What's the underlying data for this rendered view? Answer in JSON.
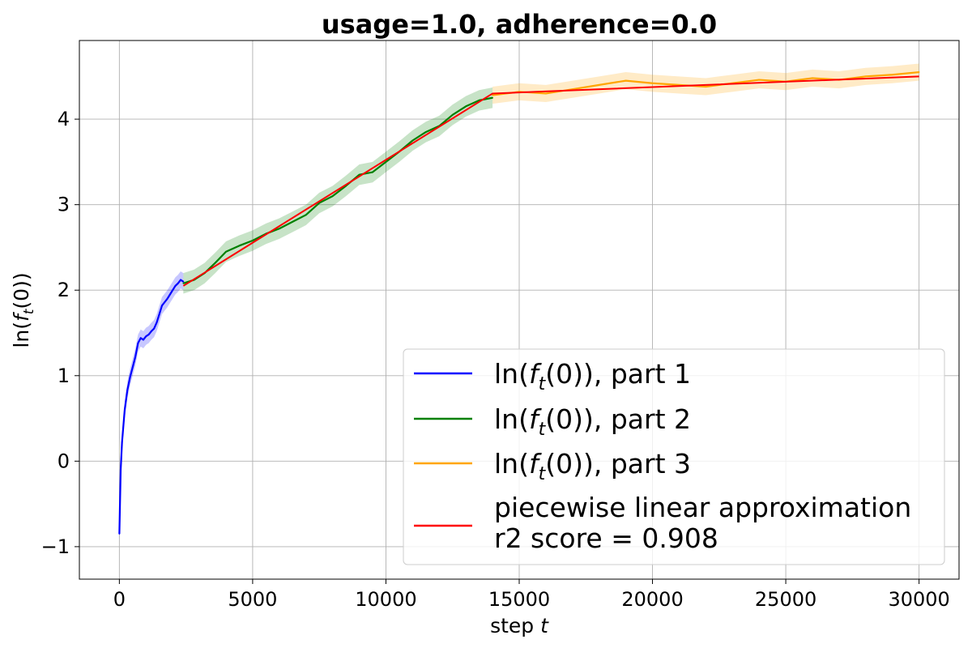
{
  "chart_data": {
    "type": "line",
    "title": "usage=1.0, adherence=0.0",
    "xlabel_main": "step ",
    "xlabel_var": "t",
    "ylabel": "ln(f_t(0))",
    "xlim": [
      -1500,
      31500
    ],
    "ylim": [
      -1.38,
      4.92
    ],
    "xticks": [
      0,
      5000,
      10000,
      15000,
      20000,
      25000,
      30000
    ],
    "xtick_labels": [
      "0",
      "5000",
      "10000",
      "15000",
      "20000",
      "25000",
      "30000"
    ],
    "yticks": [
      -1,
      0,
      1,
      2,
      3,
      4
    ],
    "ytick_labels": [
      "−1",
      "0",
      "1",
      "2",
      "3",
      "4"
    ],
    "grid": true,
    "legend_position": "lower-right",
    "series": [
      {
        "legend_main": "ln(",
        "legend_f": "f",
        "legend_sub": "t",
        "legend_tail": "(0)), part 1",
        "color": "#0000ff",
        "band_color": "#0000ff",
        "x": [
          0,
          50,
          100,
          200,
          300,
          400,
          500,
          600,
          700,
          800,
          900,
          1000,
          1100,
          1200,
          1300,
          1400,
          1500,
          1600,
          1700,
          1800,
          1900,
          2000,
          2100,
          2200,
          2300,
          2400
        ],
        "y": [
          -0.85,
          -0.1,
          0.22,
          0.6,
          0.83,
          0.98,
          1.1,
          1.22,
          1.38,
          1.44,
          1.42,
          1.46,
          1.48,
          1.52,
          1.55,
          1.62,
          1.72,
          1.82,
          1.86,
          1.9,
          1.95,
          2.0,
          2.05,
          2.08,
          2.12,
          2.1
        ]
      },
      {
        "legend_main": "ln(",
        "legend_f": "f",
        "legend_sub": "t",
        "legend_tail": "(0)), part 2",
        "color": "#008000",
        "band_color": "#008000",
        "x": [
          2400,
          2800,
          3200,
          3600,
          4000,
          4500,
          5000,
          5500,
          6000,
          6500,
          7000,
          7500,
          8000,
          8500,
          9000,
          9500,
          10000,
          10500,
          11000,
          11500,
          12000,
          12500,
          13000,
          13500,
          14000
        ],
        "y": [
          2.08,
          2.12,
          2.2,
          2.32,
          2.45,
          2.52,
          2.58,
          2.66,
          2.72,
          2.8,
          2.88,
          3.02,
          3.1,
          3.22,
          3.35,
          3.38,
          3.5,
          3.62,
          3.75,
          3.85,
          3.92,
          4.05,
          4.15,
          4.22,
          4.25
        ]
      },
      {
        "legend_main": "ln(",
        "legend_f": "f",
        "legend_sub": "t",
        "legend_tail": "(0)), part 3",
        "color": "#ffa500",
        "band_color": "#ffa500",
        "x": [
          14000,
          15000,
          16000,
          17000,
          18000,
          19000,
          20000,
          21000,
          22000,
          23000,
          24000,
          25000,
          26000,
          27000,
          28000,
          29000,
          30000
        ],
        "y": [
          4.28,
          4.32,
          4.3,
          4.35,
          4.4,
          4.45,
          4.42,
          4.4,
          4.38,
          4.42,
          4.46,
          4.44,
          4.48,
          4.46,
          4.5,
          4.52,
          4.55
        ]
      },
      {
        "legend_main": "piecewise linear approximation",
        "legend_line2": "r2 score = 0.908",
        "color": "#ff0000",
        "x": [
          2400,
          14000,
          30000
        ],
        "y": [
          2.05,
          4.3,
          4.5
        ]
      }
    ]
  }
}
